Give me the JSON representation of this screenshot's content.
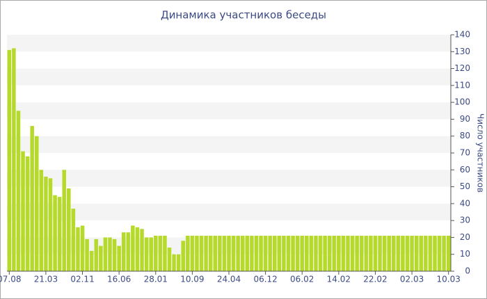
{
  "chart_data": {
    "type": "bar",
    "title": "Динамика участников беседы",
    "y_label": "Число участников",
    "categories": [
      "07.08",
      null,
      null,
      null,
      null,
      null,
      null,
      null,
      "21.03",
      null,
      null,
      null,
      null,
      null,
      null,
      null,
      "02.11",
      null,
      null,
      null,
      null,
      null,
      null,
      null,
      "16.06",
      null,
      null,
      null,
      null,
      null,
      null,
      null,
      "28.01",
      null,
      null,
      null,
      null,
      null,
      null,
      null,
      "10.09",
      null,
      null,
      null,
      null,
      null,
      null,
      null,
      "24.04",
      null,
      null,
      null,
      null,
      null,
      null,
      null,
      "06.12",
      null,
      null,
      null,
      null,
      null,
      null,
      null,
      "06.02",
      null,
      null,
      null,
      null,
      null,
      null,
      null,
      "14.02",
      null,
      null,
      null,
      null,
      null,
      null,
      null,
      "22.02",
      null,
      null,
      null,
      null,
      null,
      null,
      null,
      "02.03",
      null,
      null,
      null,
      null,
      null,
      null,
      null,
      "10.03"
    ],
    "values": [
      131,
      132,
      95,
      71,
      68,
      86,
      80,
      60,
      56,
      55,
      45,
      44,
      60,
      49,
      37,
      26,
      27,
      19,
      12,
      19,
      15,
      20,
      20,
      19,
      15,
      23,
      23,
      27,
      26,
      25,
      20,
      20,
      21,
      21,
      21,
      14,
      10,
      10,
      18,
      21,
      21,
      21,
      21,
      21,
      21,
      21,
      21,
      21,
      21,
      21,
      21,
      21,
      21,
      21,
      21,
      21,
      21,
      21,
      21,
      21,
      21,
      21,
      21,
      21,
      21,
      21,
      21,
      21,
      21,
      21,
      21,
      21,
      21,
      21,
      21,
      21,
      21,
      21,
      21,
      21,
      21,
      21,
      21,
      21,
      21,
      21,
      21,
      21,
      21,
      21,
      21,
      21,
      21,
      21,
      21,
      21,
      21
    ],
    "color": "#b6da2b",
    "ylim": [
      0,
      140
    ],
    "yticks": [
      0,
      10,
      20,
      30,
      40,
      50,
      60,
      70,
      80,
      90,
      100,
      110,
      120,
      130,
      140
    ],
    "grid": true
  }
}
